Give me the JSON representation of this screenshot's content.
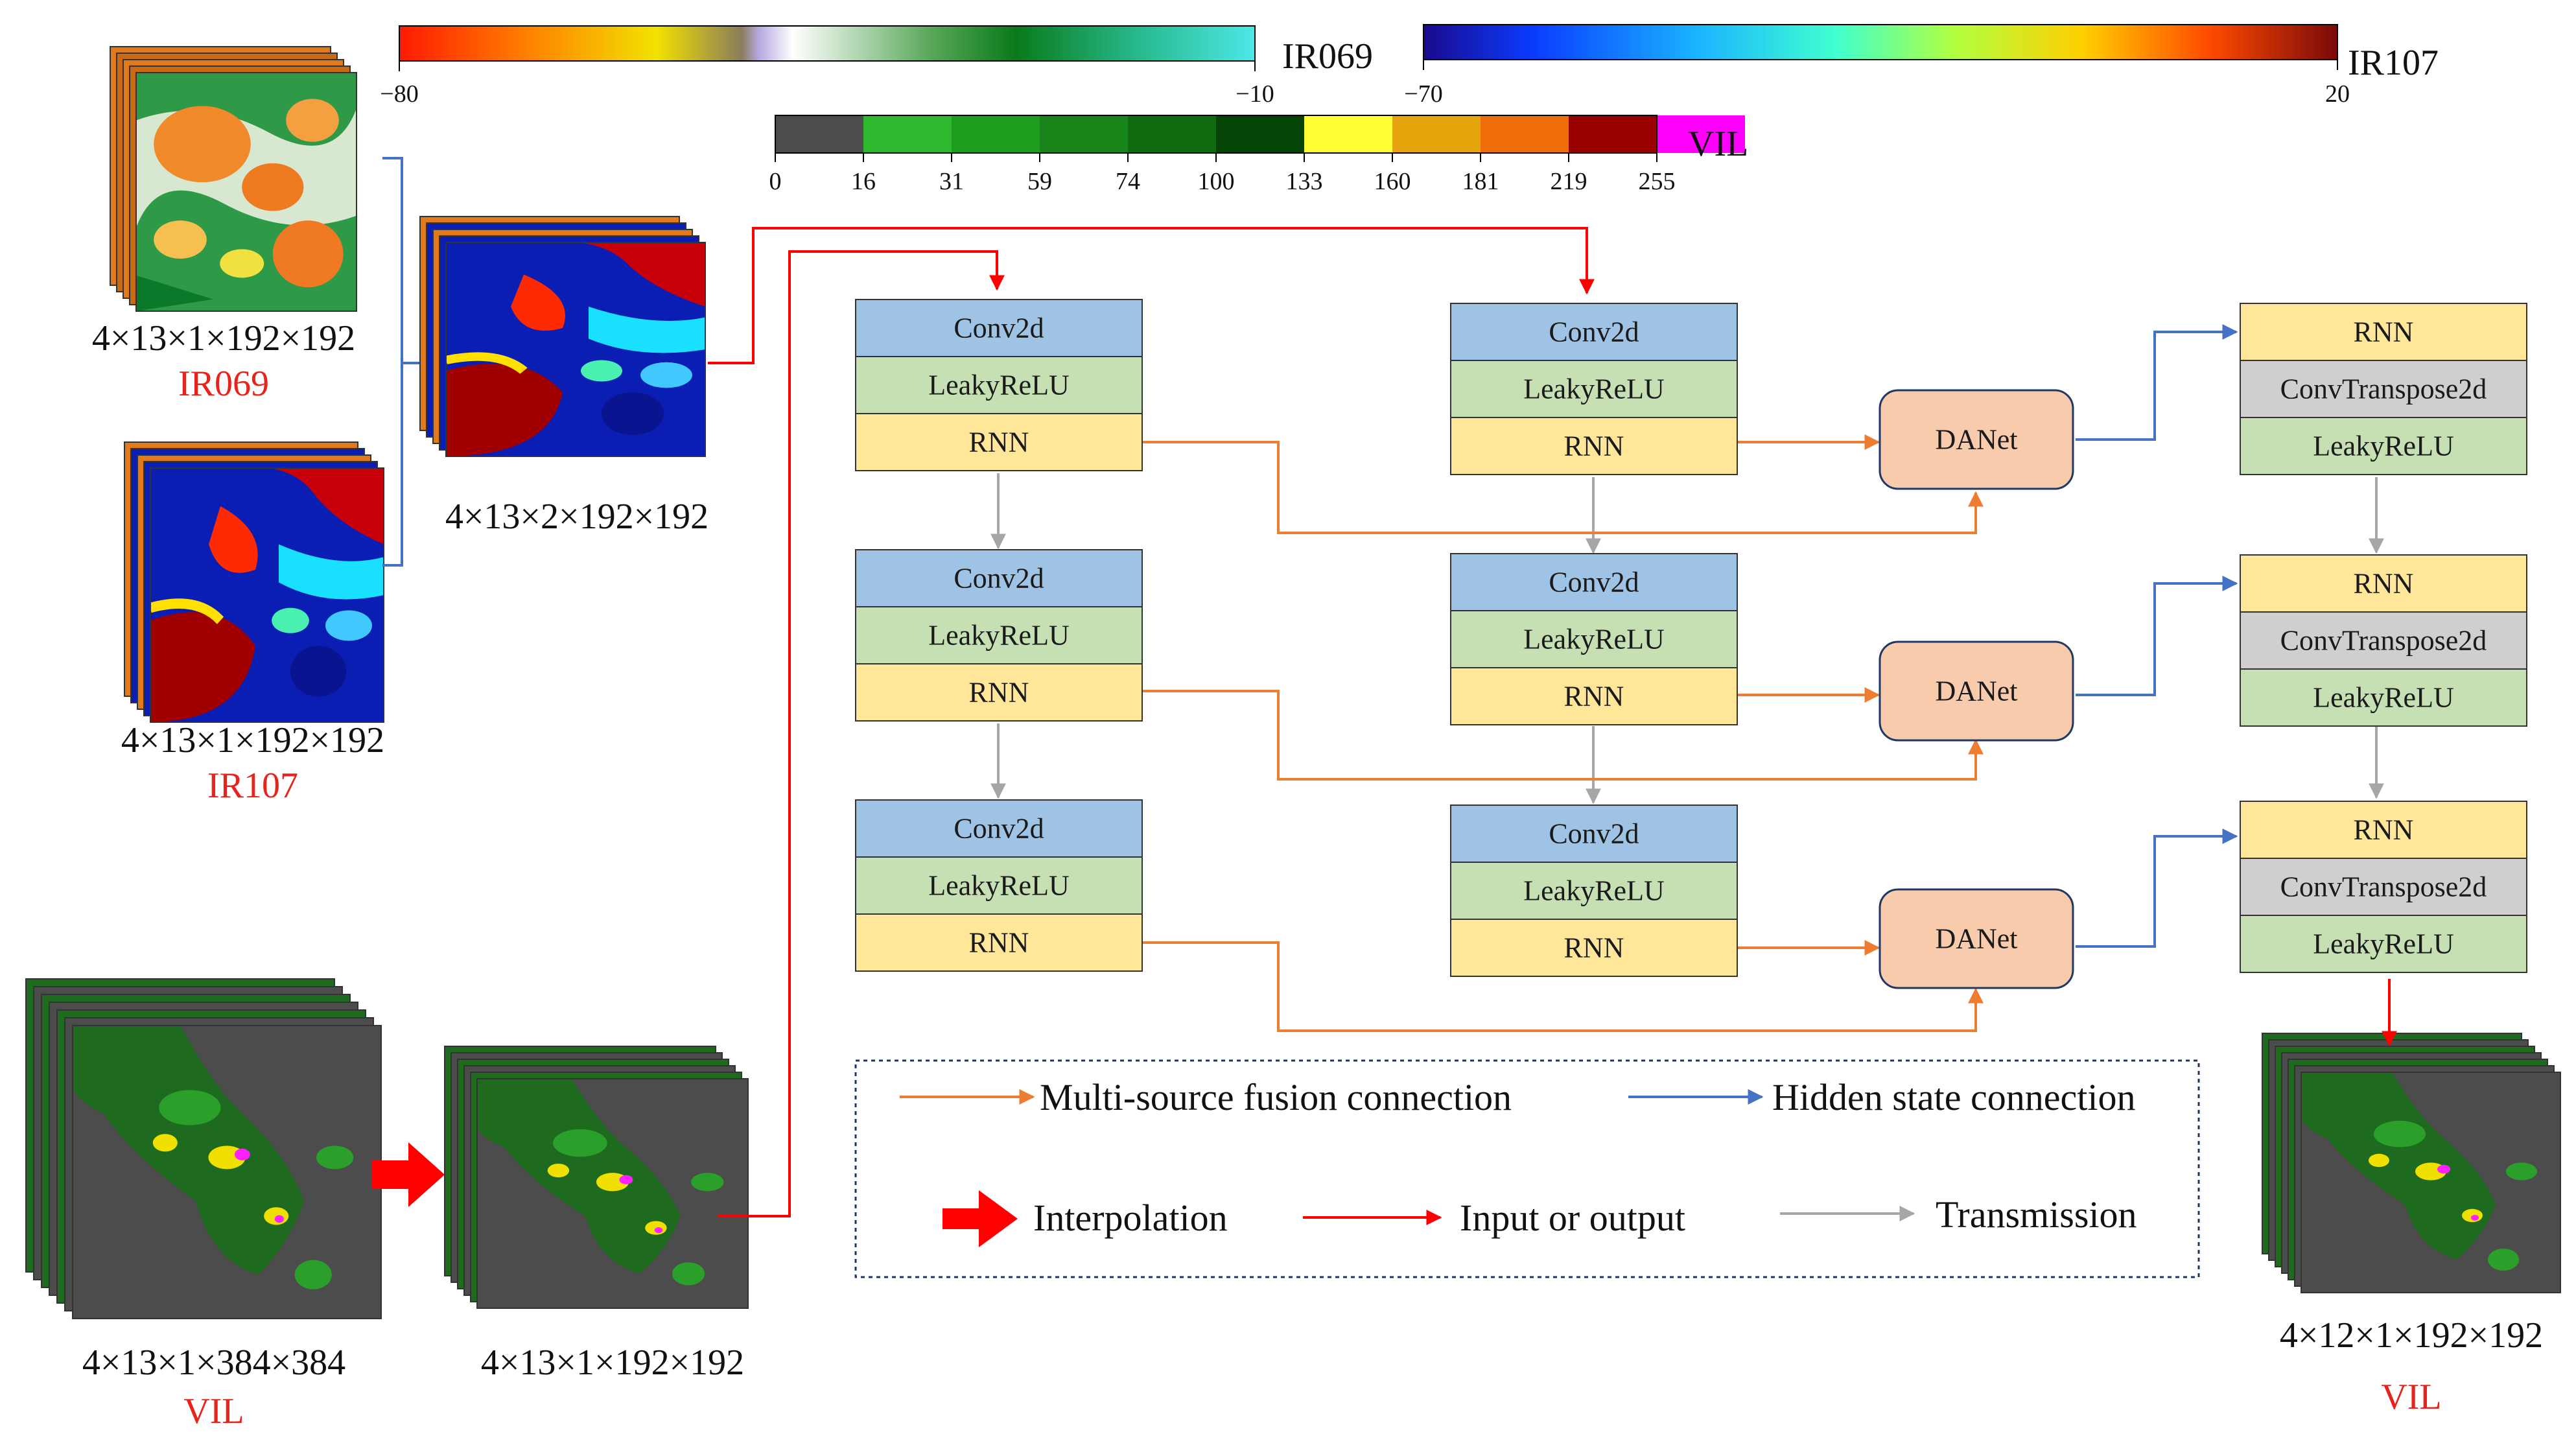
{
  "colors": {
    "conv": "#9fc3e4",
    "leaky": "#c6e0b4",
    "rnn": "#ffe699",
    "convt": "#d0cece",
    "danet": "#f8cbad",
    "orange": "#ed7d31",
    "blue": "#4472c4",
    "red": "#ff0000",
    "gray": "#a6a6a6"
  },
  "colorbars": {
    "ir069": {
      "label": "IR069",
      "min": "−80",
      "max": "−10"
    },
    "ir107": {
      "label": "IR107",
      "min": "−70",
      "max": "20"
    },
    "vil": {
      "label": "VIL",
      "ticks": [
        "0",
        "16",
        "31",
        "59",
        "74",
        "100",
        "133",
        "160",
        "181",
        "219",
        "255"
      ]
    }
  },
  "inputs": {
    "ir069": {
      "dims": "4×13×1×192×192",
      "name": "IR069"
    },
    "ir107": {
      "dims": "4×13×1×192×192",
      "name": "IR107"
    },
    "ir_concat": {
      "dims": "4×13×2×192×192"
    },
    "vil_raw": {
      "dims": "4×13×1×384×384",
      "name": "VIL"
    },
    "vil_interp": {
      "dims": "4×13×1×192×192"
    },
    "vil_out": {
      "dims": "4×12×1×192×192",
      "name": "VIL"
    }
  },
  "blocks": {
    "conv2d": "Conv2d",
    "leaky": "LeakyReLU",
    "rnn": "RNN",
    "convt": "ConvTranspose2d",
    "danet": "DANet"
  },
  "legend": {
    "fusion": "Multi-source fusion connection",
    "hidden": "Hidden state connection",
    "interp": "Interpolation",
    "io": "Input or output",
    "trans": "Transmission"
  }
}
